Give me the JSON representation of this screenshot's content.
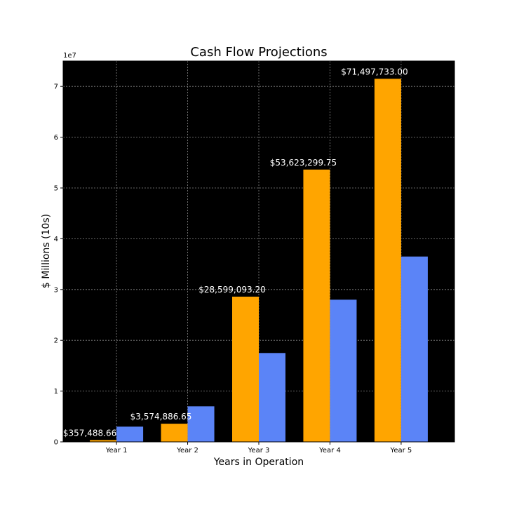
{
  "chart_data": {
    "type": "bar",
    "title": "Cash Flow Projections",
    "xlabel": "Years in Operation",
    "ylabel": "$ Millions (10s)",
    "offset_text": "1e7",
    "categories": [
      "Year 1",
      "Year 2",
      "Year 3",
      "Year 4",
      "Year 5"
    ],
    "series": [
      {
        "color": "#ffa500",
        "values": [
          357488.66,
          3574886.65,
          28599093.2,
          53623299.75,
          71497733.0
        ],
        "labels": [
          "$357,488.66",
          "$3,574,886.65",
          "$28,599,093.20",
          "$53,623,299.75",
          "$71,497,733.00"
        ]
      },
      {
        "color": "#5b84f7",
        "values": [
          3000000,
          7000000,
          17500000,
          28000000,
          36500000
        ]
      }
    ],
    "ylim": [
      0,
      75000000
    ],
    "yticks": [
      0,
      10000000,
      20000000,
      30000000,
      40000000,
      50000000,
      60000000,
      70000000
    ],
    "ytick_labels": [
      "0",
      "1",
      "2",
      "3",
      "4",
      "5",
      "6",
      "7"
    ],
    "grid": true,
    "background": "#000000",
    "grid_color": "#888888"
  }
}
